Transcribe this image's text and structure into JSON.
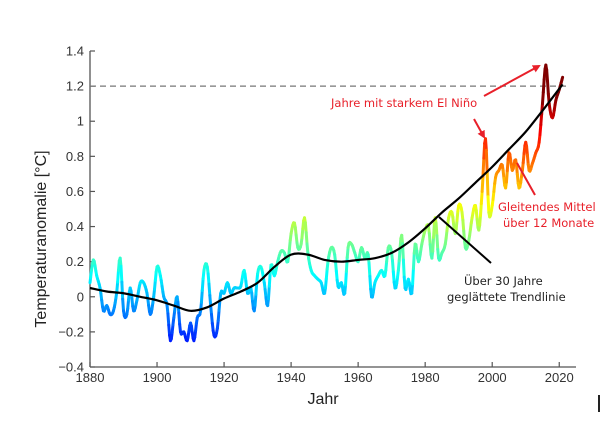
{
  "chart_data": {
    "type": "line",
    "title": "",
    "xlabel": "Jahr",
    "ylabel": "Temperaturanomalie [°C]",
    "xlim": [
      1880,
      2025
    ],
    "ylim": [
      -0.4,
      1.4
    ],
    "xticks": [
      1880,
      1900,
      1920,
      1940,
      1960,
      1980,
      2000,
      2020
    ],
    "yticks": [
      -0.4,
      -0.2,
      0,
      0.2,
      0.4,
      0.6,
      0.8,
      1,
      1.2,
      1.4
    ],
    "xtick_labels": [
      "1880",
      "1900",
      "1920",
      "1940",
      "1960",
      "1980",
      "2000",
      "2020"
    ],
    "ytick_labels": [
      "−0.4",
      "−0.2",
      "0",
      "0.2",
      "0.4",
      "0.6",
      "0.8",
      "1",
      "1.2",
      "1.4"
    ],
    "grid": false,
    "reference_line": {
      "y": 1.2,
      "style": "dashed",
      "color": "#777777"
    },
    "series": [
      {
        "name": "Gleitendes Mittel über 12 Monate",
        "colormap": "jet (by value)",
        "x": [
          1880,
          1881,
          1882,
          1883,
          1884,
          1885,
          1886,
          1887,
          1888,
          1889,
          1890,
          1891,
          1892,
          1893,
          1894,
          1895,
          1896,
          1897,
          1898,
          1899,
          1900,
          1901,
          1902,
          1903,
          1904,
          1905,
          1906,
          1907,
          1908,
          1909,
          1910,
          1911,
          1912,
          1913,
          1914,
          1915,
          1916,
          1917,
          1918,
          1919,
          1920,
          1921,
          1922,
          1923,
          1924,
          1925,
          1926,
          1927,
          1928,
          1929,
          1930,
          1931,
          1932,
          1933,
          1934,
          1935,
          1936,
          1937,
          1938,
          1939,
          1940,
          1941,
          1942,
          1943,
          1944,
          1945,
          1946,
          1947,
          1948,
          1949,
          1950,
          1951,
          1952,
          1953,
          1954,
          1955,
          1956,
          1957,
          1958,
          1959,
          1960,
          1961,
          1962,
          1963,
          1964,
          1965,
          1966,
          1967,
          1968,
          1969,
          1970,
          1971,
          1972,
          1973,
          1974,
          1975,
          1976,
          1977,
          1978,
          1979,
          1980,
          1981,
          1982,
          1983,
          1984,
          1985,
          1986,
          1987,
          1988,
          1989,
          1990,
          1991,
          1992,
          1993,
          1994,
          1995,
          1996,
          1997,
          1998,
          1999,
          2000,
          2001,
          2002,
          2003,
          2004,
          2005,
          2006,
          2007,
          2008,
          2009,
          2010,
          2011,
          2012,
          2013,
          2014,
          2015,
          2016,
          2017,
          2018,
          2019,
          2020,
          2021
        ],
        "values": [
          0.08,
          0.21,
          0.12,
          0.05,
          -0.08,
          -0.05,
          -0.1,
          -0.08,
          0.03,
          0.22,
          -0.08,
          -0.1,
          0.05,
          -0.08,
          -0.02,
          0.08,
          0.08,
          0.02,
          -0.1,
          0.0,
          0.17,
          0.12,
          0.0,
          -0.05,
          -0.25,
          -0.12,
          0.0,
          -0.2,
          -0.2,
          -0.25,
          -0.15,
          -0.25,
          -0.12,
          -0.08,
          0.15,
          0.17,
          -0.05,
          -0.22,
          -0.18,
          0.02,
          0.02,
          0.08,
          0.02,
          0.05,
          0.05,
          0.06,
          0.15,
          0.02,
          0.05,
          -0.08,
          0.13,
          0.17,
          0.08,
          -0.05,
          0.18,
          0.12,
          0.2,
          0.26,
          0.25,
          0.2,
          0.36,
          0.42,
          0.28,
          0.3,
          0.45,
          0.25,
          0.15,
          0.12,
          0.1,
          0.08,
          0.02,
          0.2,
          0.28,
          0.24,
          0.06,
          0.08,
          0.02,
          0.28,
          0.3,
          0.25,
          0.2,
          0.28,
          0.22,
          0.24,
          0.0,
          0.08,
          0.12,
          0.15,
          0.12,
          0.28,
          0.25,
          0.05,
          0.15,
          0.35,
          0.05,
          0.1,
          0.02,
          0.3,
          0.2,
          0.3,
          0.38,
          0.4,
          0.22,
          0.45,
          0.22,
          0.25,
          0.3,
          0.45,
          0.48,
          0.36,
          0.52,
          0.48,
          0.28,
          0.32,
          0.45,
          0.52,
          0.38,
          0.6,
          0.9,
          0.48,
          0.52,
          0.68,
          0.72,
          0.75,
          0.62,
          0.82,
          0.72,
          0.78,
          0.62,
          0.72,
          0.88,
          0.72,
          0.76,
          0.82,
          0.88,
          1.1,
          1.32,
          1.1,
          1.02,
          1.12,
          1.18,
          1.25
        ],
        "name_color": "jet"
      },
      {
        "name": "Über 30 Jahre geglättete Trendlinie",
        "color": "#000000",
        "x": [
          1880,
          1885,
          1890,
          1895,
          1900,
          1905,
          1910,
          1915,
          1920,
          1925,
          1930,
          1935,
          1940,
          1945,
          1950,
          1955,
          1960,
          1965,
          1970,
          1975,
          1980,
          1985,
          1990,
          1995,
          2000,
          2005,
          2010,
          2015,
          2021
        ],
        "values": [
          0.05,
          0.03,
          0.02,
          0.0,
          -0.02,
          -0.05,
          -0.08,
          -0.06,
          -0.01,
          0.03,
          0.08,
          0.17,
          0.24,
          0.24,
          0.21,
          0.2,
          0.21,
          0.22,
          0.25,
          0.31,
          0.39,
          0.48,
          0.56,
          0.65,
          0.74,
          0.84,
          0.94,
          1.06,
          1.21
        ]
      }
    ],
    "annotations": [
      {
        "text": "Jahre mit starkem El Niño",
        "color": "#e8202a",
        "points_to": [
          1998,
          2016
        ]
      },
      {
        "text_lines": [
          "Gleitendes Mittel",
          "über 12 Monate"
        ],
        "color": "#e8202a",
        "points_to_series": "Gleitendes Mittel über 12 Monate"
      },
      {
        "text_lines": [
          "Über 30 Jahre",
          "geglättete Trendlinie"
        ],
        "color": "#222222",
        "points_to_series": "Über 30 Jahre geglättete Trendlinie"
      }
    ]
  }
}
